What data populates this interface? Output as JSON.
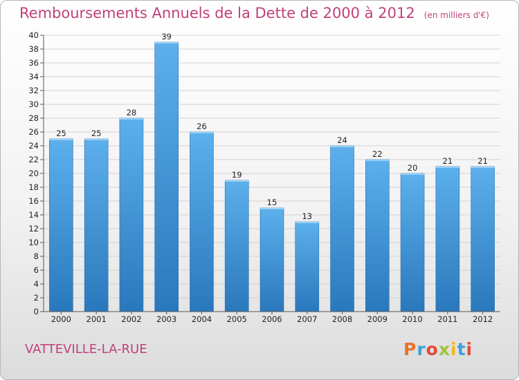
{
  "header": {
    "title": "Remboursements Annuels de la Dette de 2000 à 2012",
    "unit": "(en milliers d'€)"
  },
  "footer": {
    "commune": "VATTEVILLE-LA-RUE",
    "logo": "Proxiti",
    "logo_colors": [
      "#e8732a",
      "#3f9fd8",
      "#e5493a",
      "#9bc33b",
      "#f3b820",
      "#3f9fd8",
      "#e5493a"
    ]
  },
  "chart_data": {
    "type": "bar",
    "categories": [
      "2000",
      "2001",
      "2002",
      "2003",
      "2004",
      "2005",
      "2006",
      "2007",
      "2008",
      "2009",
      "2010",
      "2011",
      "2012"
    ],
    "values": [
      25,
      25,
      28,
      39,
      26,
      19,
      15,
      13,
      24,
      22,
      20,
      21,
      21
    ],
    "ylim": [
      0,
      40
    ],
    "yticks": [
      0,
      2,
      4,
      6,
      8,
      10,
      12,
      14,
      16,
      18,
      20,
      22,
      24,
      26,
      28,
      30,
      32,
      34,
      36,
      38,
      40
    ],
    "grid": true,
    "bar_color": "#3d95da"
  }
}
